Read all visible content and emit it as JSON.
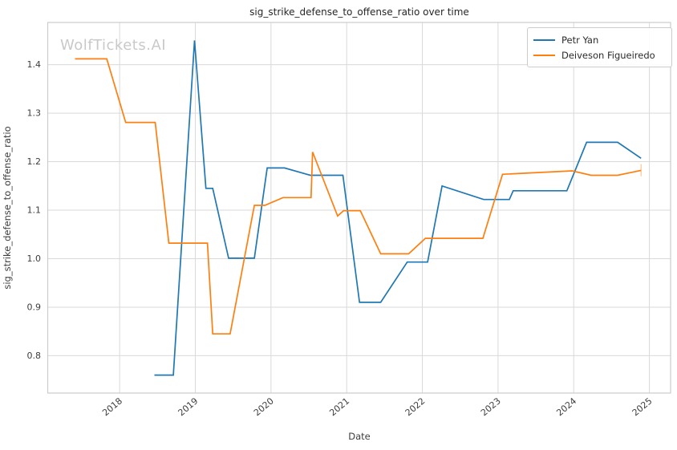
{
  "chart_data": {
    "type": "line",
    "title": "sig_strike_defense_to_offense_ratio over time",
    "xlabel": "Date",
    "ylabel": "sig_strike_defense_to_offense_ratio",
    "watermark": "WolfTickets.AI",
    "grid": true,
    "legend_position": "upper right",
    "xlim": [
      2017.05,
      2025.28
    ],
    "ylim": [
      0.723,
      1.487
    ],
    "x_ticks": [
      2018,
      2019,
      2020,
      2021,
      2022,
      2023,
      2024,
      2025
    ],
    "y_ticks": [
      0.8,
      0.9,
      1.0,
      1.1,
      1.2,
      1.3,
      1.4
    ],
    "grid_color": "#d9d9d9",
    "frame_color": "#cccccc",
    "series": [
      {
        "name": "Petr Yan",
        "color": "#1f77b4",
        "points": [
          [
            2018.46,
            0.76
          ],
          [
            2018.71,
            0.76
          ],
          [
            2018.99,
            1.45
          ],
          [
            2019.14,
            1.145
          ],
          [
            2019.23,
            1.145
          ],
          [
            2019.44,
            1.001
          ],
          [
            2019.78,
            1.001
          ],
          [
            2019.95,
            1.187
          ],
          [
            2020.18,
            1.187
          ],
          [
            2020.52,
            1.172
          ],
          [
            2020.95,
            1.172
          ],
          [
            2021.17,
            0.91
          ],
          [
            2021.45,
            0.91
          ],
          [
            2021.8,
            0.993
          ],
          [
            2022.07,
            0.993
          ],
          [
            2022.26,
            1.15
          ],
          [
            2022.81,
            1.122
          ],
          [
            2023.15,
            1.122
          ],
          [
            2023.2,
            1.14
          ],
          [
            2023.91,
            1.14
          ],
          [
            2024.17,
            1.24
          ],
          [
            2024.58,
            1.24
          ],
          [
            2024.89,
            1.207
          ]
        ]
      },
      {
        "name": "Deiveson Figueiredo",
        "color": "#ff7f0e",
        "points": [
          [
            2017.41,
            1.412
          ],
          [
            2017.83,
            1.412
          ],
          [
            2018.08,
            1.281
          ],
          [
            2018.47,
            1.281
          ],
          [
            2018.65,
            1.032
          ],
          [
            2019.16,
            1.032
          ],
          [
            2019.23,
            0.845
          ],
          [
            2019.46,
            0.845
          ],
          [
            2019.78,
            1.11
          ],
          [
            2019.92,
            1.11
          ],
          [
            2020.16,
            1.126
          ],
          [
            2020.53,
            1.126
          ],
          [
            2020.55,
            1.22
          ],
          [
            2020.88,
            1.088
          ],
          [
            2020.96,
            1.099
          ],
          [
            2021.18,
            1.099
          ],
          [
            2021.45,
            1.01
          ],
          [
            2021.82,
            1.01
          ],
          [
            2022.04,
            1.042
          ],
          [
            2022.8,
            1.042
          ],
          [
            2023.06,
            1.174
          ],
          [
            2023.98,
            1.181
          ],
          [
            2024.23,
            1.172
          ],
          [
            2024.58,
            1.172
          ],
          [
            2024.89,
            1.182
          ]
        ],
        "end_cap": {
          "x": 2024.89,
          "y_low": 1.17,
          "y_high": 1.195
        }
      }
    ]
  }
}
